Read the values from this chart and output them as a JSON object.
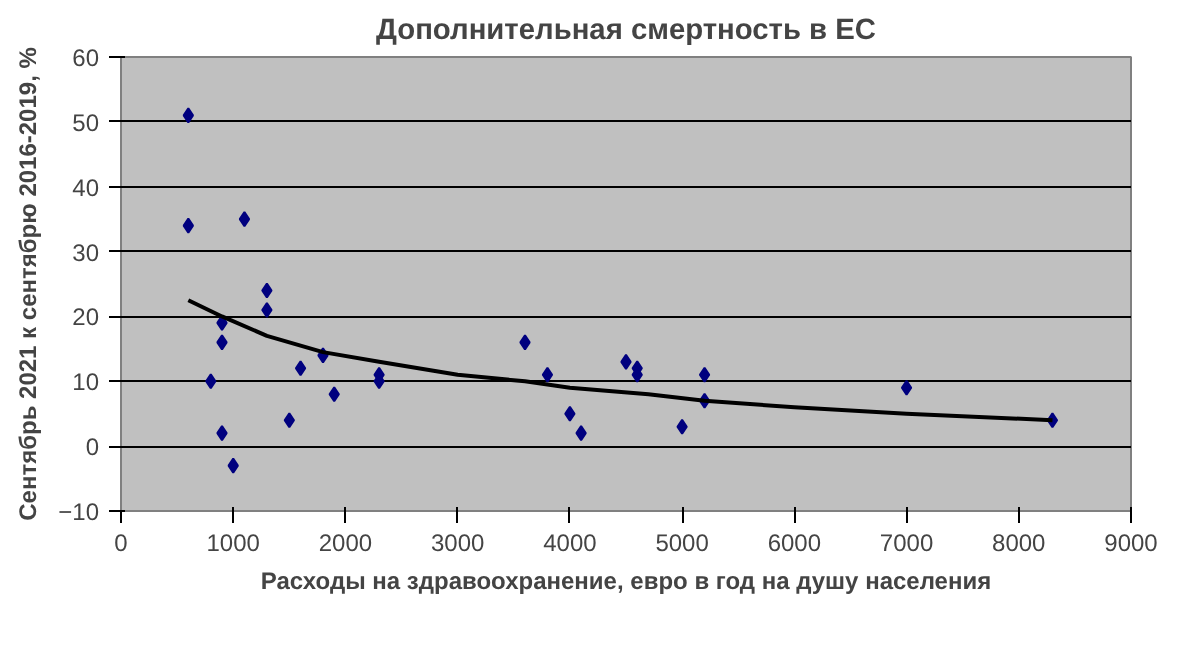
{
  "chart_data": {
    "type": "scatter",
    "title": "Дополнительная смертность в ЕС",
    "xlabel": "Расходы на здравоохранение, евро в год на душу населения",
    "ylabel": "Сентябрь 2021 к сентябрю 2016-2019, %",
    "xlim": [
      0,
      9000
    ],
    "xticks": [
      0,
      1000,
      2000,
      3000,
      4000,
      5000,
      6000,
      7000,
      8000,
      9000
    ],
    "ylim": [
      -10,
      60
    ],
    "yticks": [
      -10,
      0,
      10,
      20,
      30,
      40,
      50,
      60
    ],
    "grid": "y",
    "marker": "diamond",
    "series": [
      {
        "color": "#00007f",
        "x": [
          600,
          600,
          800,
          900,
          900,
          900,
          1000,
          1100,
          1300,
          1300,
          1500,
          1600,
          1800,
          1900,
          2300,
          2300,
          3600,
          3800,
          4000,
          4100,
          4500,
          4600,
          4600,
          5000,
          5200,
          5200,
          7000,
          8300
        ],
        "values": [
          51,
          34,
          10,
          19,
          16,
          2,
          -3,
          35,
          24,
          21,
          4,
          12,
          14,
          8,
          11,
          10,
          16,
          11,
          5,
          2,
          13,
          12,
          11,
          3,
          11,
          7,
          9,
          4
        ]
      },
      {
        "type": "line",
        "color": "#000000",
        "marker": "none",
        "x": [
          600,
          900,
          1300,
          1800,
          2300,
          3000,
          3600,
          4000,
          4700,
          5200,
          6000,
          7000,
          8300
        ],
        "values": [
          22.5,
          20,
          17,
          14.5,
          13,
          11,
          10,
          9,
          8,
          7,
          6,
          5,
          4
        ]
      }
    ]
  }
}
